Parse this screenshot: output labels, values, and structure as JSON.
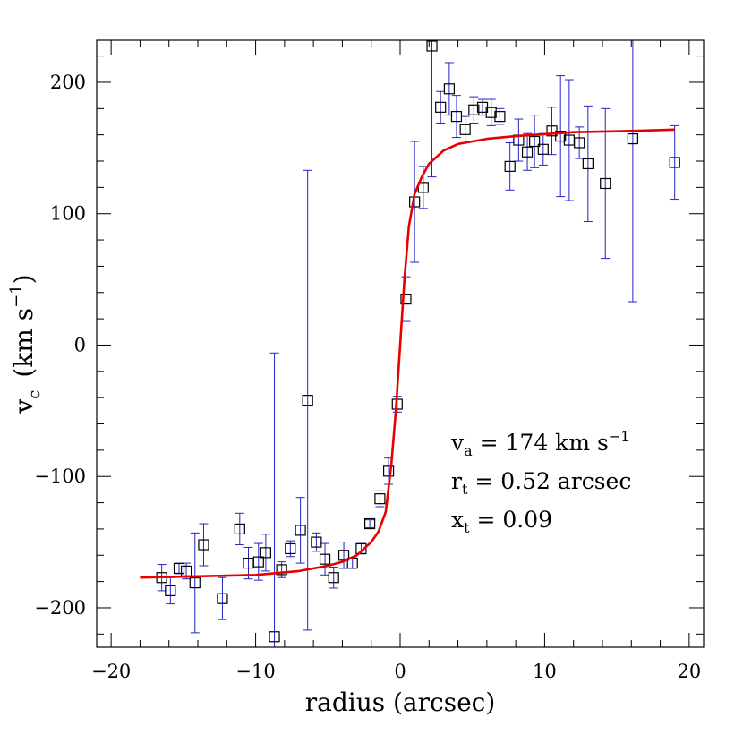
{
  "chart_data": {
    "type": "scatter",
    "xlabel": "radius (arcsec)",
    "ylabel": "v",
    "ylabel_sub": "c",
    "ylabel_units": "(km s",
    "ylabel_exp": "−1",
    "ylabel_close": ")",
    "xlim": [
      -21,
      21
    ],
    "ylim": [
      -230,
      232
    ],
    "x_ticks": [
      -20,
      -10,
      0,
      10,
      20
    ],
    "x_tick_labels": [
      "−20",
      "−10",
      "0",
      "10",
      "20"
    ],
    "y_ticks": [
      -200,
      -100,
      0,
      100,
      200
    ],
    "y_tick_labels": [
      "−200",
      "−100",
      "0",
      "100",
      "200"
    ],
    "x_minor_step": 2,
    "y_minor_step": 20,
    "colors": {
      "points": "#000000",
      "error_bars": "#2323c8",
      "model": "#e60000"
    },
    "series": [
      {
        "kind": "points_with_errors",
        "points": [
          {
            "x": -16.5,
            "y": -177,
            "err": 10
          },
          {
            "x": -15.9,
            "y": -187,
            "err": 10
          },
          {
            "x": -15.3,
            "y": -170,
            "err": 4
          },
          {
            "x": -14.8,
            "y": -172,
            "err": 6
          },
          {
            "x": -14.2,
            "y": -181,
            "err": 38
          },
          {
            "x": -13.6,
            "y": -152,
            "err": 16
          },
          {
            "x": -12.3,
            "y": -193,
            "err": 16
          },
          {
            "x": -11.1,
            "y": -140,
            "err": 12
          },
          {
            "x": -10.5,
            "y": -166,
            "err": 12
          },
          {
            "x": -9.8,
            "y": -165,
            "err": 14
          },
          {
            "x": -9.3,
            "y": -158,
            "err": 14
          },
          {
            "x": -8.7,
            "y": -222,
            "err": 216
          },
          {
            "x": -8.2,
            "y": -171,
            "err": 6
          },
          {
            "x": -7.6,
            "y": -155,
            "err": 6
          },
          {
            "x": -6.9,
            "y": -141,
            "err": 25
          },
          {
            "x": -6.4,
            "y": -42,
            "err": 175
          },
          {
            "x": -5.8,
            "y": -150,
            "err": 7
          },
          {
            "x": -5.2,
            "y": -163,
            "err": 12
          },
          {
            "x": -4.6,
            "y": -177,
            "err": 8
          },
          {
            "x": -3.9,
            "y": -160,
            "err": 10
          },
          {
            "x": -3.3,
            "y": -166,
            "err": 4
          },
          {
            "x": -2.7,
            "y": -155,
            "err": 4
          },
          {
            "x": -2.1,
            "y": -136,
            "err": 3
          },
          {
            "x": -1.4,
            "y": -117,
            "err": 6
          },
          {
            "x": -0.8,
            "y": -96,
            "err": 10
          },
          {
            "x": -0.2,
            "y": -45,
            "err": 6
          },
          {
            "x": 0.4,
            "y": 35,
            "err": 17
          },
          {
            "x": 1.0,
            "y": 109,
            "err": 46
          },
          {
            "x": 1.6,
            "y": 120,
            "err": 16
          },
          {
            "x": 2.2,
            "y": 228,
            "err": 100
          },
          {
            "x": 2.8,
            "y": 181,
            "err": 12
          },
          {
            "x": 3.4,
            "y": 195,
            "err": 20
          },
          {
            "x": 3.9,
            "y": 174,
            "err": 16
          },
          {
            "x": 4.5,
            "y": 164,
            "err": 10
          },
          {
            "x": 5.1,
            "y": 179,
            "err": 10
          },
          {
            "x": 5.7,
            "y": 181,
            "err": 6
          },
          {
            "x": 6.3,
            "y": 177,
            "err": 10
          },
          {
            "x": 6.9,
            "y": 174,
            "err": 6
          },
          {
            "x": 7.6,
            "y": 136,
            "err": 18
          },
          {
            "x": 8.2,
            "y": 156,
            "err": 16
          },
          {
            "x": 8.8,
            "y": 147,
            "err": 14
          },
          {
            "x": 9.3,
            "y": 155,
            "err": 20
          },
          {
            "x": 9.9,
            "y": 149,
            "err": 12
          },
          {
            "x": 10.5,
            "y": 163,
            "err": 18
          },
          {
            "x": 11.1,
            "y": 159,
            "err": 46
          },
          {
            "x": 11.7,
            "y": 156,
            "err": 46
          },
          {
            "x": 12.4,
            "y": 154,
            "err": 12
          },
          {
            "x": 13.0,
            "y": 138,
            "err": 44
          },
          {
            "x": 14.2,
            "y": 123,
            "err": 57
          },
          {
            "x": 16.1,
            "y": 157,
            "err": 124
          },
          {
            "x": 19.0,
            "y": 139,
            "err": 28
          }
        ]
      },
      {
        "kind": "model_curve",
        "points": [
          {
            "x": -18,
            "y": -177
          },
          {
            "x": -14,
            "y": -176
          },
          {
            "x": -10,
            "y": -175
          },
          {
            "x": -7,
            "y": -172
          },
          {
            "x": -5,
            "y": -168
          },
          {
            "x": -4,
            "y": -165
          },
          {
            "x": -3,
            "y": -160
          },
          {
            "x": -2,
            "y": -150
          },
          {
            "x": -1.5,
            "y": -142
          },
          {
            "x": -1,
            "y": -127
          },
          {
            "x": -0.6,
            "y": -90
          },
          {
            "x": -0.3,
            "y": -50
          },
          {
            "x": 0,
            "y": 0
          },
          {
            "x": 0.3,
            "y": 50
          },
          {
            "x": 0.6,
            "y": 90
          },
          {
            "x": 1.0,
            "y": 115
          },
          {
            "x": 1.5,
            "y": 128
          },
          {
            "x": 2.0,
            "y": 138
          },
          {
            "x": 3.0,
            "y": 148
          },
          {
            "x": 4.0,
            "y": 153
          },
          {
            "x": 6.0,
            "y": 157
          },
          {
            "x": 8.0,
            "y": 159
          },
          {
            "x": 12.0,
            "y": 162
          },
          {
            "x": 16.0,
            "y": 163
          },
          {
            "x": 19.0,
            "y": 164
          }
        ]
      }
    ],
    "annotations": [
      {
        "symbol": "v",
        "sub": "a",
        "text": " = 174 km s",
        "exp": "−1"
      },
      {
        "symbol": "r",
        "sub": "t",
        "text": " = 0.52 arcsec",
        "exp": ""
      },
      {
        "symbol": "x",
        "sub": "t",
        "text": " = 0.09",
        "exp": ""
      }
    ]
  }
}
